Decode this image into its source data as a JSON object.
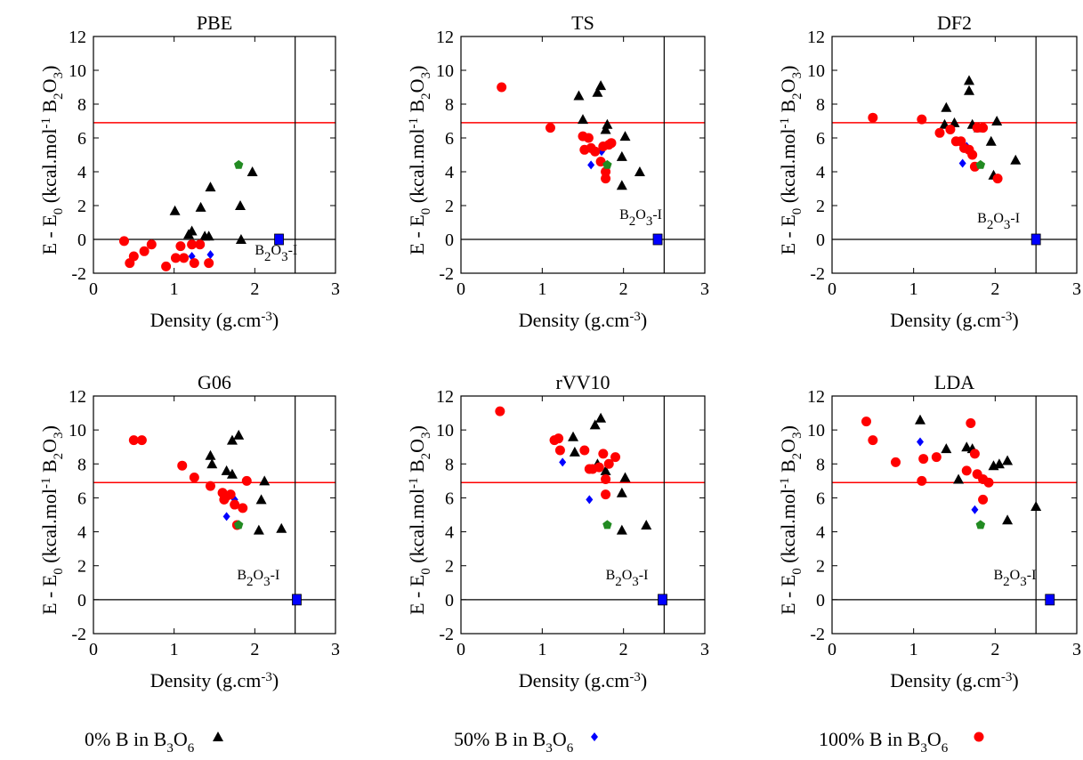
{
  "figure": {
    "legend": [
      {
        "label": "0% B in B3O6",
        "marker": "triangle",
        "color": "#000000"
      },
      {
        "label": "50% B in B3O6",
        "marker": "diamond",
        "color": "#0000ff"
      },
      {
        "label": "100% B in B3O6",
        "marker": "circle",
        "color": "#ff0000"
      }
    ],
    "colors": {
      "red_line": "#ff0000",
      "zero_line": "#000000",
      "b0": "#000000",
      "b50": "#0000ff",
      "b100": "#ff0000",
      "pentagon": "#228b22",
      "reference": "#0000ff"
    }
  },
  "chart_data": [
    {
      "type": "scatter",
      "title": "PBE",
      "xlabel": "Density (g.cm-3)",
      "ylabel": "E - E0 (kcal.mol-1 B2O3)",
      "xlim": [
        0,
        3
      ],
      "ylim": [
        -2,
        12
      ],
      "xticks": [
        0,
        1,
        2,
        3
      ],
      "yticks": [
        -2,
        0,
        2,
        4,
        6,
        8,
        10,
        12
      ],
      "hline_red": 6.9,
      "hline_zero": 0,
      "vline": 2.5,
      "annotation": {
        "text": "B2O3-I",
        "x": 2.0,
        "y": -0.9
      },
      "reference": {
        "x": 2.3,
        "y": 0.0
      },
      "series": [
        {
          "name": "0% B in B3O6",
          "marker": "triangle",
          "points": [
            [
              1.01,
              1.7
            ],
            [
              1.18,
              0.3
            ],
            [
              1.22,
              0.5
            ],
            [
              1.33,
              1.9
            ],
            [
              1.38,
              0.2
            ],
            [
              1.43,
              0.2
            ],
            [
              1.45,
              3.1
            ],
            [
              1.82,
              2.0
            ],
            [
              1.83,
              0.0
            ],
            [
              1.97,
              4.0
            ]
          ]
        },
        {
          "name": "50% B in B3O6",
          "marker": "diamond",
          "points": [
            [
              1.22,
              -1.0
            ],
            [
              1.45,
              -0.9
            ]
          ]
        },
        {
          "name": "100% B in B3O6",
          "marker": "circle",
          "points": [
            [
              0.38,
              -0.1
            ],
            [
              0.45,
              -1.4
            ],
            [
              0.5,
              -1.0
            ],
            [
              0.63,
              -0.7
            ],
            [
              0.72,
              -0.3
            ],
            [
              0.9,
              -1.6
            ],
            [
              1.02,
              -1.1
            ],
            [
              1.08,
              -0.4
            ],
            [
              1.12,
              -1.1
            ],
            [
              1.22,
              -0.3
            ],
            [
              1.25,
              -1.4
            ],
            [
              1.32,
              -0.3
            ],
            [
              1.43,
              -1.4
            ]
          ]
        },
        {
          "name": "",
          "marker": "pentagon",
          "points": [
            [
              1.8,
              4.4
            ]
          ]
        }
      ]
    },
    {
      "type": "scatter",
      "title": "TS",
      "xlabel": "Density (g.cm-3)",
      "ylabel": "E - E0 (kcal.mol-1 B2O3)",
      "xlim": [
        0,
        3
      ],
      "ylim": [
        -2,
        12
      ],
      "xticks": [
        0,
        1,
        2,
        3
      ],
      "yticks": [
        -2,
        0,
        2,
        4,
        6,
        8,
        10,
        12
      ],
      "hline_red": 6.9,
      "hline_zero": 0,
      "vline": 2.5,
      "annotation": {
        "text": "B2O3-I",
        "x": 1.95,
        "y": 1.2
      },
      "reference": {
        "x": 2.42,
        "y": 0.0
      },
      "series": [
        {
          "name": "0% B in B3O6",
          "marker": "triangle",
          "points": [
            [
              1.45,
              8.5
            ],
            [
              1.5,
              7.1
            ],
            [
              1.68,
              8.7
            ],
            [
              1.72,
              9.1
            ],
            [
              1.78,
              6.5
            ],
            [
              1.8,
              6.8
            ],
            [
              1.98,
              4.9
            ],
            [
              2.02,
              6.1
            ],
            [
              1.98,
              3.2
            ],
            [
              2.2,
              4.0
            ]
          ]
        },
        {
          "name": "50% B in B3O6",
          "marker": "diamond",
          "points": [
            [
              1.6,
              4.4
            ],
            [
              1.73,
              5.2
            ]
          ]
        },
        {
          "name": "100% B in B3O6",
          "marker": "circle",
          "points": [
            [
              0.5,
              9.0
            ],
            [
              1.1,
              6.6
            ],
            [
              1.5,
              6.1
            ],
            [
              1.52,
              5.3
            ],
            [
              1.57,
              6.0
            ],
            [
              1.6,
              5.4
            ],
            [
              1.65,
              5.2
            ],
            [
              1.72,
              4.6
            ],
            [
              1.75,
              5.5
            ],
            [
              1.78,
              4.0
            ],
            [
              1.78,
              3.6
            ],
            [
              1.82,
              5.6
            ],
            [
              1.85,
              5.7
            ]
          ]
        },
        {
          "name": "",
          "marker": "pentagon",
          "points": [
            [
              1.8,
              4.4
            ]
          ]
        }
      ]
    },
    {
      "type": "scatter",
      "title": "DF2",
      "xlabel": "Density (g.cm-3)",
      "ylabel": "E - E0 (kcal.mol-1 B2O3)",
      "xlim": [
        0,
        3
      ],
      "ylim": [
        -2,
        12
      ],
      "xticks": [
        0,
        1,
        2,
        3
      ],
      "yticks": [
        -2,
        0,
        2,
        4,
        6,
        8,
        10,
        12
      ],
      "hline_red": 6.9,
      "hline_zero": 0,
      "vline": 2.5,
      "annotation": {
        "text": "B2O3-I",
        "x": 1.78,
        "y": 1.0
      },
      "reference": {
        "x": 2.5,
        "y": 0.0
      },
      "series": [
        {
          "name": "0% B in B3O6",
          "marker": "triangle",
          "points": [
            [
              1.38,
              6.8
            ],
            [
              1.4,
              7.8
            ],
            [
              1.5,
              6.9
            ],
            [
              1.68,
              9.4
            ],
            [
              1.68,
              8.8
            ],
            [
              1.72,
              6.8
            ],
            [
              1.8,
              6.6
            ],
            [
              1.95,
              5.8
            ],
            [
              2.02,
              7.0
            ],
            [
              1.98,
              3.8
            ],
            [
              2.25,
              4.7
            ]
          ]
        },
        {
          "name": "50% B in B3O6",
          "marker": "diamond",
          "points": [
            [
              1.6,
              4.5
            ],
            [
              1.65,
              5.5
            ]
          ]
        },
        {
          "name": "100% B in B3O6",
          "marker": "circle",
          "points": [
            [
              0.5,
              7.2
            ],
            [
              1.1,
              7.1
            ],
            [
              1.32,
              6.3
            ],
            [
              1.45,
              6.5
            ],
            [
              1.52,
              5.8
            ],
            [
              1.58,
              5.8
            ],
            [
              1.62,
              5.4
            ],
            [
              1.68,
              5.3
            ],
            [
              1.72,
              5.0
            ],
            [
              1.75,
              4.3
            ],
            [
              1.78,
              6.6
            ],
            [
              1.85,
              6.6
            ],
            [
              2.03,
              3.6
            ]
          ]
        },
        {
          "name": "",
          "marker": "pentagon",
          "points": [
            [
              1.82,
              4.4
            ]
          ]
        }
      ]
    },
    {
      "type": "scatter",
      "title": "G06",
      "xlabel": "Density (g.cm-3)",
      "ylabel": "E - E0 (kcal.mol-1 B2O3)",
      "xlim": [
        0,
        3
      ],
      "ylim": [
        -2,
        12
      ],
      "xticks": [
        0,
        1,
        2,
        3
      ],
      "yticks": [
        -2,
        0,
        2,
        4,
        6,
        8,
        10,
        12
      ],
      "hline_red": 6.9,
      "hline_zero": 0,
      "vline": 2.5,
      "annotation": {
        "text": "B2O3-I",
        "x": 1.78,
        "y": 1.2
      },
      "reference": {
        "x": 2.52,
        "y": 0.0
      },
      "series": [
        {
          "name": "0% B in B3O6",
          "marker": "triangle",
          "points": [
            [
              1.45,
              8.5
            ],
            [
              1.47,
              8.0
            ],
            [
              1.65,
              7.6
            ],
            [
              1.72,
              9.4
            ],
            [
              1.72,
              7.4
            ],
            [
              1.8,
              9.7
            ],
            [
              2.12,
              7.0
            ],
            [
              2.08,
              5.9
            ],
            [
              2.05,
              4.1
            ],
            [
              2.33,
              4.2
            ]
          ]
        },
        {
          "name": "50% B in B3O6",
          "marker": "diamond",
          "points": [
            [
              1.65,
              4.9
            ],
            [
              1.75,
              5.9
            ]
          ]
        },
        {
          "name": "100% B in B3O6",
          "marker": "circle",
          "points": [
            [
              0.5,
              9.4
            ],
            [
              0.6,
              9.4
            ],
            [
              1.1,
              7.9
            ],
            [
              1.25,
              7.2
            ],
            [
              1.45,
              6.7
            ],
            [
              1.6,
              6.3
            ],
            [
              1.62,
              5.9
            ],
            [
              1.65,
              6.1
            ],
            [
              1.7,
              6.2
            ],
            [
              1.75,
              5.6
            ],
            [
              1.78,
              4.4
            ],
            [
              1.85,
              5.4
            ],
            [
              1.9,
              7.0
            ]
          ]
        },
        {
          "name": "",
          "marker": "pentagon",
          "points": [
            [
              1.8,
              4.4
            ]
          ]
        }
      ]
    },
    {
      "type": "scatter",
      "title": "rVV10",
      "xlabel": "Density (g.cm-3)",
      "ylabel": "E - E0 (kcal.mol-1 B2O3)",
      "xlim": [
        0,
        3
      ],
      "ylim": [
        -2,
        12
      ],
      "xticks": [
        0,
        1,
        2,
        3
      ],
      "yticks": [
        -2,
        0,
        2,
        4,
        6,
        8,
        10,
        12
      ],
      "hline_red": 6.9,
      "hline_zero": 0,
      "vline": 2.5,
      "annotation": {
        "text": "B2O3-I",
        "x": 1.78,
        "y": 1.2
      },
      "reference": {
        "x": 2.48,
        "y": 0.0
      },
      "series": [
        {
          "name": "0% B in B3O6",
          "marker": "triangle",
          "points": [
            [
              1.38,
              9.6
            ],
            [
              1.4,
              8.7
            ],
            [
              1.65,
              10.3
            ],
            [
              1.72,
              10.7
            ],
            [
              1.68,
              8.0
            ],
            [
              1.78,
              7.6
            ],
            [
              2.02,
              7.2
            ],
            [
              1.98,
              6.3
            ],
            [
              1.98,
              4.1
            ],
            [
              2.28,
              4.4
            ]
          ]
        },
        {
          "name": "50% B in B3O6",
          "marker": "diamond",
          "points": [
            [
              1.25,
              8.1
            ],
            [
              1.58,
              5.9
            ]
          ]
        },
        {
          "name": "100% B in B3O6",
          "marker": "circle",
          "points": [
            [
              0.48,
              11.1
            ],
            [
              1.15,
              9.4
            ],
            [
              1.2,
              9.5
            ],
            [
              1.22,
              8.8
            ],
            [
              1.52,
              8.8
            ],
            [
              1.58,
              7.7
            ],
            [
              1.62,
              7.7
            ],
            [
              1.7,
              7.8
            ],
            [
              1.75,
              8.6
            ],
            [
              1.78,
              7.1
            ],
            [
              1.78,
              6.2
            ],
            [
              1.82,
              8.0
            ],
            [
              1.9,
              8.4
            ]
          ]
        },
        {
          "name": "",
          "marker": "pentagon",
          "points": [
            [
              1.8,
              4.4
            ]
          ]
        }
      ]
    },
    {
      "type": "scatter",
      "title": "LDA",
      "xlabel": "Density (g.cm-3)",
      "ylabel": "E - E0 (kcal.mol-1 B2O3)",
      "xlim": [
        0,
        3
      ],
      "ylim": [
        -2,
        12
      ],
      "xticks": [
        0,
        1,
        2,
        3
      ],
      "yticks": [
        -2,
        0,
        2,
        4,
        6,
        8,
        10,
        12
      ],
      "hline_red": 6.9,
      "hline_zero": 0,
      "vline": 2.5,
      "annotation": {
        "text": "B2O3-I",
        "x": 1.98,
        "y": 1.2
      },
      "reference": {
        "x": 2.67,
        "y": 0.0
      },
      "series": [
        {
          "name": "0% B in B3O6",
          "marker": "triangle",
          "points": [
            [
              1.08,
              10.6
            ],
            [
              1.4,
              8.9
            ],
            [
              1.55,
              7.1
            ],
            [
              1.65,
              9.0
            ],
            [
              1.72,
              8.9
            ],
            [
              1.98,
              7.9
            ],
            [
              2.05,
              8.0
            ],
            [
              2.15,
              8.2
            ],
            [
              2.15,
              4.7
            ],
            [
              2.5,
              5.5
            ]
          ]
        },
        {
          "name": "50% B in B3O6",
          "marker": "diamond",
          "points": [
            [
              1.08,
              9.3
            ],
            [
              1.75,
              5.3
            ]
          ]
        },
        {
          "name": "100% B in B3O6",
          "marker": "circle",
          "points": [
            [
              0.42,
              10.5
            ],
            [
              0.5,
              9.4
            ],
            [
              0.78,
              8.1
            ],
            [
              1.1,
              7.0
            ],
            [
              1.12,
              8.3
            ],
            [
              1.28,
              8.4
            ],
            [
              1.65,
              7.6
            ],
            [
              1.7,
              10.4
            ],
            [
              1.75,
              8.6
            ],
            [
              1.78,
              7.4
            ],
            [
              1.85,
              7.1
            ],
            [
              1.85,
              5.9
            ],
            [
              1.92,
              6.9
            ]
          ]
        },
        {
          "name": "",
          "marker": "pentagon",
          "points": [
            [
              1.82,
              4.4
            ]
          ]
        }
      ]
    }
  ]
}
